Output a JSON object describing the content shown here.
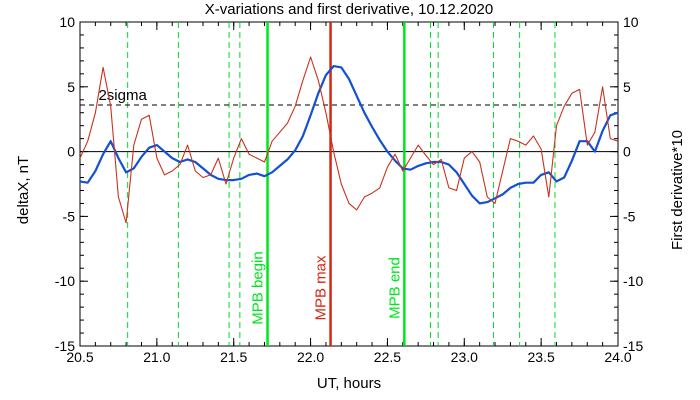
{
  "chart_data": {
    "type": "line",
    "title": "X-variations and first derivative, 10.12.2020",
    "xlabel": "UT, hours",
    "ylabel_left": "deltaX, nT",
    "ylabel_right": "First derivative*10",
    "xlim": [
      20.5,
      24.0
    ],
    "ylim": [
      -15,
      10
    ],
    "x_ticks": [
      "20.5",
      "21.0",
      "21.5",
      "22.0",
      "22.5",
      "23.0",
      "23.5",
      "24.0"
    ],
    "y_ticks_left": [
      "10",
      "5",
      "0",
      "-5",
      "-10",
      "-15"
    ],
    "y_ticks_right": [
      "10",
      "5",
      "0",
      "-5",
      "-10",
      "-15"
    ],
    "sigma_level": 3.6,
    "sigma_label": "2sigma",
    "colors": {
      "deltaX": "#1450d2",
      "derivative": "#c8321e",
      "mpb_edge": "#00e61e",
      "mpb_max": "#d22814",
      "guide": "#00dc28"
    },
    "markers": [
      {
        "x": 21.72,
        "label": "MPB begin",
        "kind": "edge"
      },
      {
        "x": 22.13,
        "label": "MPB max",
        "kind": "max"
      },
      {
        "x": 22.61,
        "label": "MPB end",
        "kind": "edge"
      }
    ],
    "guide_lines": [
      20.81,
      21.14,
      21.47,
      21.54,
      22.78,
      22.83,
      23.19,
      23.36,
      23.59
    ],
    "series": [
      {
        "name": "deltaX",
        "axis": "left",
        "x": [
          20.5,
          20.55,
          20.6,
          20.65,
          20.7,
          20.75,
          20.8,
          20.85,
          20.9,
          20.95,
          21.0,
          21.05,
          21.1,
          21.15,
          21.2,
          21.25,
          21.3,
          21.35,
          21.4,
          21.45,
          21.5,
          21.55,
          21.6,
          21.65,
          21.7,
          21.75,
          21.8,
          21.85,
          21.9,
          21.95,
          22.0,
          22.05,
          22.1,
          22.15,
          22.2,
          22.25,
          22.3,
          22.35,
          22.4,
          22.45,
          22.5,
          22.55,
          22.6,
          22.65,
          22.7,
          22.75,
          22.8,
          22.85,
          22.9,
          22.95,
          23.0,
          23.05,
          23.1,
          23.15,
          23.2,
          23.25,
          23.3,
          23.35,
          23.4,
          23.45,
          23.5,
          23.55,
          23.6,
          23.65,
          23.7,
          23.75,
          23.8,
          23.85,
          23.9,
          23.95,
          24.0
        ],
        "values": [
          -2.3,
          -2.4,
          -1.5,
          -0.2,
          0.8,
          -0.5,
          -1.6,
          -1.3,
          -0.4,
          0.3,
          0.5,
          0.0,
          -0.5,
          -0.8,
          -0.6,
          -0.8,
          -1.3,
          -1.8,
          -2.1,
          -2.2,
          -2.2,
          -2.1,
          -1.8,
          -1.7,
          -1.9,
          -1.6,
          -1.1,
          -0.6,
          0.1,
          1.2,
          2.8,
          4.5,
          5.9,
          6.6,
          6.5,
          5.6,
          4.3,
          3.0,
          1.9,
          0.9,
          0.0,
          -0.7,
          -1.3,
          -1.4,
          -1.1,
          -0.9,
          -0.8,
          -0.8,
          -1.0,
          -1.6,
          -2.5,
          -3.4,
          -4.0,
          -3.9,
          -3.6,
          -3.3,
          -2.8,
          -2.5,
          -2.4,
          -2.4,
          -1.8,
          -1.6,
          -2.3,
          -2.0,
          -0.7,
          0.8,
          0.8,
          0.0,
          1.6,
          2.8,
          3.0
        ]
      },
      {
        "name": "First derivative*10",
        "axis": "right",
        "x": [
          20.5,
          20.55,
          20.6,
          20.65,
          20.7,
          20.75,
          20.8,
          20.85,
          20.9,
          20.95,
          21.0,
          21.05,
          21.1,
          21.15,
          21.2,
          21.25,
          21.3,
          21.35,
          21.4,
          21.45,
          21.5,
          21.55,
          21.6,
          21.65,
          21.7,
          21.75,
          21.8,
          21.85,
          21.9,
          21.95,
          22.0,
          22.05,
          22.1,
          22.15,
          22.2,
          22.25,
          22.3,
          22.35,
          22.4,
          22.45,
          22.5,
          22.55,
          22.6,
          22.65,
          22.7,
          22.75,
          22.8,
          22.85,
          22.9,
          22.95,
          23.0,
          23.05,
          23.1,
          23.15,
          23.2,
          23.25,
          23.3,
          23.35,
          23.4,
          23.45,
          23.5,
          23.55,
          23.6,
          23.65,
          23.7,
          23.75,
          23.8,
          23.85,
          23.9,
          23.95,
          24.0
        ],
        "values": [
          -0.5,
          0.8,
          3.0,
          6.5,
          3.5,
          -3.5,
          -5.5,
          0.5,
          2.5,
          2.8,
          -0.5,
          -1.8,
          -1.5,
          -1.0,
          0.5,
          -1.5,
          -2.0,
          -1.8,
          -0.5,
          -2.5,
          -0.5,
          1.0,
          -0.2,
          -0.5,
          -0.8,
          0.8,
          1.5,
          2.2,
          3.5,
          5.5,
          7.3,
          5.5,
          3.0,
          0.0,
          -2.5,
          -4.0,
          -4.5,
          -3.5,
          -3.2,
          -2.8,
          -1.2,
          -0.2,
          -1.5,
          -0.5,
          0.5,
          -0.3,
          -1.0,
          -0.6,
          -2.8,
          -3.0,
          -0.5,
          0.0,
          -0.8,
          -3.5,
          -4.0,
          -1.5,
          1.0,
          0.8,
          0.5,
          1.2,
          0.2,
          -3.5,
          2.0,
          3.5,
          4.5,
          4.8,
          0.5,
          1.5,
          5.0,
          1.0,
          0.8
        ]
      }
    ]
  }
}
